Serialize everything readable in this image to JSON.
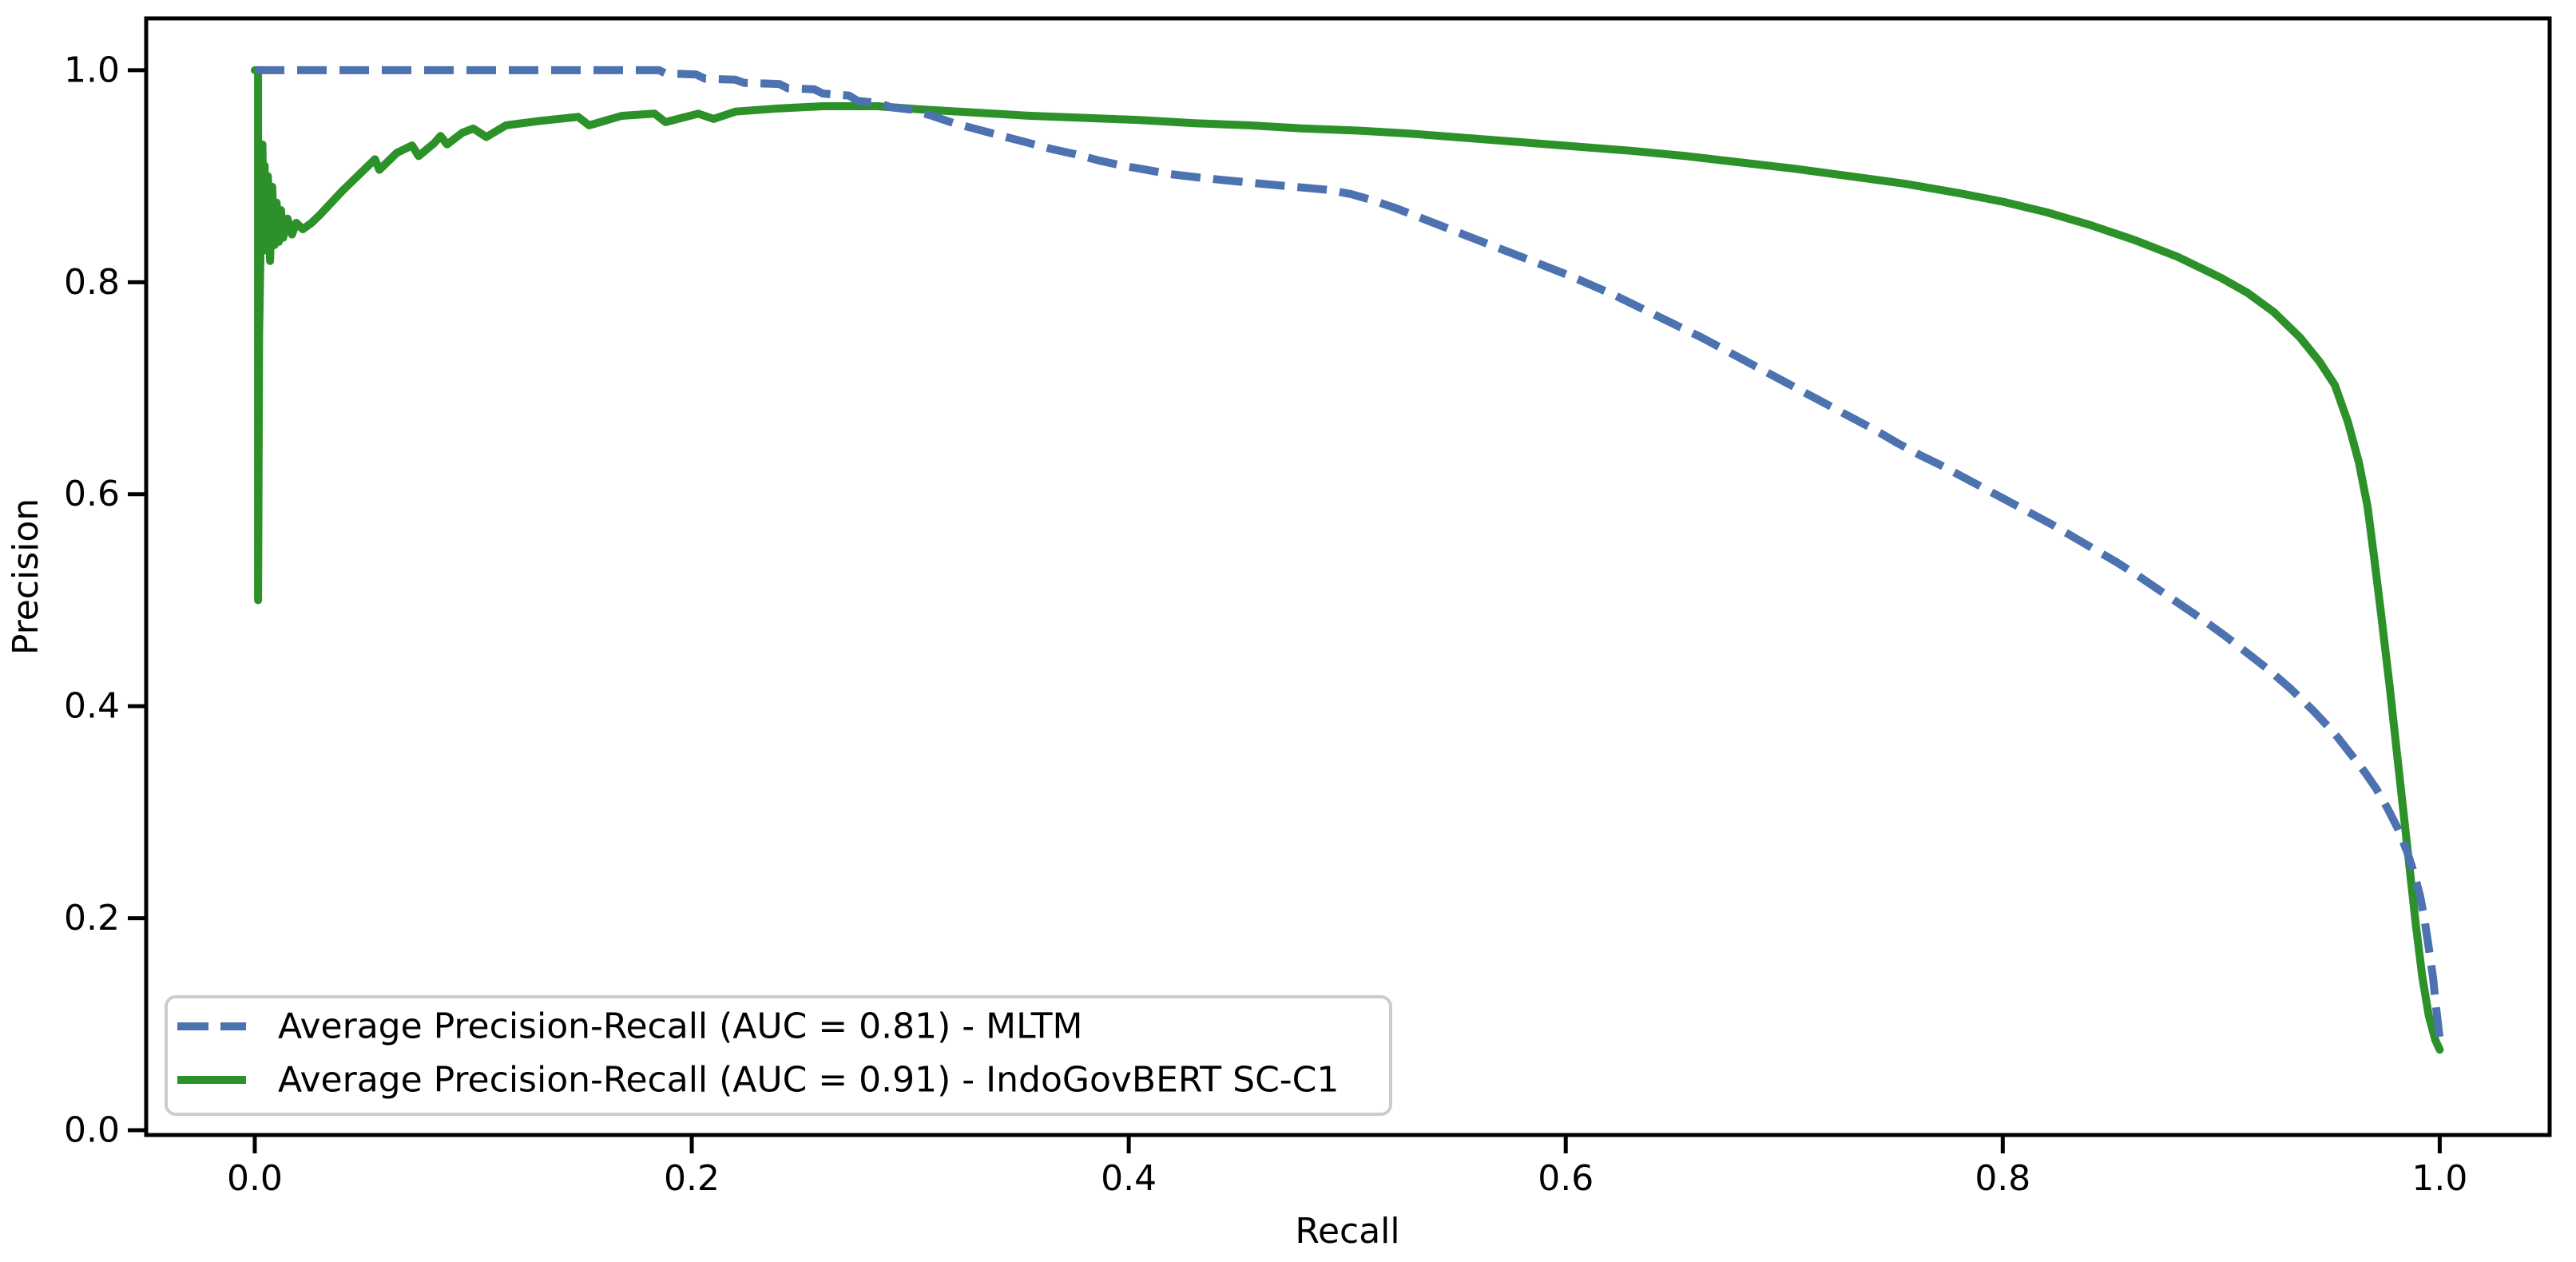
{
  "figure": {
    "background": "#ffffff",
    "axis_color": "#000000"
  },
  "chart_data": {
    "type": "line",
    "title": "",
    "xlabel": "Recall",
    "ylabel": "Precision",
    "xlim": [
      -0.0497,
      1.0503
    ],
    "ylim": [
      -0.0045,
      1.0489
    ],
    "grid": false,
    "legend": {
      "position": "lower left"
    },
    "x_ticks": [
      {
        "value": 0.0,
        "label": "0.0"
      },
      {
        "value": 0.2,
        "label": "0.2"
      },
      {
        "value": 0.4,
        "label": "0.4"
      },
      {
        "value": 0.6,
        "label": "0.6"
      },
      {
        "value": 0.8,
        "label": "0.8"
      },
      {
        "value": 1.0,
        "label": "1.0"
      }
    ],
    "y_ticks": [
      {
        "value": 0.0,
        "label": "0.0"
      },
      {
        "value": 0.2,
        "label": "0.2"
      },
      {
        "value": 0.4,
        "label": "0.4"
      },
      {
        "value": 0.6,
        "label": "0.6"
      },
      {
        "value": 0.8,
        "label": "0.8"
      },
      {
        "value": 1.0,
        "label": "1.0"
      }
    ],
    "series": [
      {
        "id": "mltm",
        "name": "Average Precision-Recall (AUC = 0.81) - MLTM",
        "auc": 0.81,
        "color": "#4c72b0",
        "style": "dashed",
        "points": [
          [
            0.0,
            1.0
          ],
          [
            0.185,
            1.0
          ],
          [
            0.188,
            0.997
          ],
          [
            0.202,
            0.996
          ],
          [
            0.206,
            0.992
          ],
          [
            0.22,
            0.991
          ],
          [
            0.224,
            0.988
          ],
          [
            0.24,
            0.987
          ],
          [
            0.244,
            0.983
          ],
          [
            0.256,
            0.982
          ],
          [
            0.26,
            0.978
          ],
          [
            0.272,
            0.976
          ],
          [
            0.276,
            0.971
          ],
          [
            0.286,
            0.969
          ],
          [
            0.291,
            0.965
          ],
          [
            0.3,
            0.963
          ],
          [
            0.31,
            0.957
          ],
          [
            0.32,
            0.95
          ],
          [
            0.331,
            0.944
          ],
          [
            0.342,
            0.938
          ],
          [
            0.353,
            0.932
          ],
          [
            0.364,
            0.926
          ],
          [
            0.375,
            0.921
          ],
          [
            0.386,
            0.915
          ],
          [
            0.397,
            0.91
          ],
          [
            0.408,
            0.906
          ],
          [
            0.419,
            0.902
          ],
          [
            0.431,
            0.899
          ],
          [
            0.445,
            0.896
          ],
          [
            0.46,
            0.893
          ],
          [
            0.476,
            0.89
          ],
          [
            0.492,
            0.887
          ],
          [
            0.502,
            0.883
          ],
          [
            0.512,
            0.877
          ],
          [
            0.522,
            0.87
          ],
          [
            0.532,
            0.862
          ],
          [
            0.542,
            0.854
          ],
          [
            0.552,
            0.846
          ],
          [
            0.562,
            0.838
          ],
          [
            0.572,
            0.83
          ],
          [
            0.582,
            0.822
          ],
          [
            0.592,
            0.814
          ],
          [
            0.602,
            0.806
          ],
          [
            0.612,
            0.797
          ],
          [
            0.622,
            0.788
          ],
          [
            0.632,
            0.778
          ],
          [
            0.642,
            0.768
          ],
          [
            0.652,
            0.758
          ],
          [
            0.662,
            0.748
          ],
          [
            0.672,
            0.737
          ],
          [
            0.682,
            0.726
          ],
          [
            0.692,
            0.715
          ],
          [
            0.702,
            0.704
          ],
          [
            0.712,
            0.693
          ],
          [
            0.722,
            0.682
          ],
          [
            0.732,
            0.671
          ],
          [
            0.742,
            0.66
          ],
          [
            0.752,
            0.648
          ],
          [
            0.762,
            0.637
          ],
          [
            0.772,
            0.627
          ],
          [
            0.782,
            0.616
          ],
          [
            0.792,
            0.605
          ],
          [
            0.802,
            0.594
          ],
          [
            0.812,
            0.583
          ],
          [
            0.822,
            0.572
          ],
          [
            0.832,
            0.56
          ],
          [
            0.842,
            0.548
          ],
          [
            0.852,
            0.536
          ],
          [
            0.862,
            0.523
          ],
          [
            0.872,
            0.509
          ],
          [
            0.882,
            0.495
          ],
          [
            0.892,
            0.481
          ],
          [
            0.902,
            0.466
          ],
          [
            0.912,
            0.45
          ],
          [
            0.922,
            0.434
          ],
          [
            0.932,
            0.416
          ],
          [
            0.942,
            0.396
          ],
          [
            0.952,
            0.374
          ],
          [
            0.96,
            0.353
          ],
          [
            0.966,
            0.337
          ],
          [
            0.971,
            0.322
          ],
          [
            0.976,
            0.304
          ],
          [
            0.981,
            0.284
          ],
          [
            0.985,
            0.263
          ],
          [
            0.988,
            0.244
          ],
          [
            0.991,
            0.221
          ],
          [
            0.993,
            0.199
          ],
          [
            0.995,
            0.172
          ],
          [
            0.997,
            0.143
          ],
          [
            0.998,
            0.122
          ],
          [
            1.0,
            0.086
          ]
        ]
      },
      {
        "id": "indogovbert",
        "name": "Average Precision-Recall (AUC = 0.91) - IndoGovBERT SC-C1",
        "auc": 0.91,
        "color": "#2b9128",
        "style": "solid",
        "points": [
          [
            0.0,
            1.0
          ],
          [
            0.0015,
            1.0
          ],
          [
            0.0015,
            0.5
          ],
          [
            0.002,
            0.75
          ],
          [
            0.003,
            0.88
          ],
          [
            0.0035,
            0.93
          ],
          [
            0.004,
            0.86
          ],
          [
            0.0045,
            0.91
          ],
          [
            0.005,
            0.83
          ],
          [
            0.006,
            0.9
          ],
          [
            0.007,
            0.82
          ],
          [
            0.008,
            0.89
          ],
          [
            0.009,
            0.835
          ],
          [
            0.01,
            0.875
          ],
          [
            0.011,
            0.838
          ],
          [
            0.012,
            0.868
          ],
          [
            0.013,
            0.842
          ],
          [
            0.015,
            0.86
          ],
          [
            0.017,
            0.845
          ],
          [
            0.019,
            0.856
          ],
          [
            0.022,
            0.85
          ],
          [
            0.026,
            0.856
          ],
          [
            0.03,
            0.864
          ],
          [
            0.035,
            0.875
          ],
          [
            0.04,
            0.886
          ],
          [
            0.045,
            0.896
          ],
          [
            0.05,
            0.906
          ],
          [
            0.055,
            0.916
          ],
          [
            0.057,
            0.906
          ],
          [
            0.065,
            0.922
          ],
          [
            0.072,
            0.929
          ],
          [
            0.075,
            0.919
          ],
          [
            0.082,
            0.931
          ],
          [
            0.085,
            0.938
          ],
          [
            0.088,
            0.93
          ],
          [
            0.095,
            0.941
          ],
          [
            0.1,
            0.945
          ],
          [
            0.106,
            0.937
          ],
          [
            0.115,
            0.948
          ],
          [
            0.13,
            0.952
          ],
          [
            0.148,
            0.956
          ],
          [
            0.153,
            0.948
          ],
          [
            0.168,
            0.957
          ],
          [
            0.183,
            0.959
          ],
          [
            0.188,
            0.951
          ],
          [
            0.203,
            0.959
          ],
          [
            0.21,
            0.954
          ],
          [
            0.22,
            0.961
          ],
          [
            0.24,
            0.964
          ],
          [
            0.26,
            0.966
          ],
          [
            0.285,
            0.966
          ],
          [
            0.305,
            0.963
          ],
          [
            0.33,
            0.96
          ],
          [
            0.355,
            0.957
          ],
          [
            0.38,
            0.955
          ],
          [
            0.405,
            0.953
          ],
          [
            0.43,
            0.95
          ],
          [
            0.455,
            0.948
          ],
          [
            0.48,
            0.945
          ],
          [
            0.505,
            0.943
          ],
          [
            0.53,
            0.94
          ],
          [
            0.555,
            0.936
          ],
          [
            0.58,
            0.932
          ],
          [
            0.605,
            0.928
          ],
          [
            0.63,
            0.924
          ],
          [
            0.655,
            0.919
          ],
          [
            0.68,
            0.913
          ],
          [
            0.705,
            0.907
          ],
          [
            0.73,
            0.9
          ],
          [
            0.755,
            0.893
          ],
          [
            0.78,
            0.884
          ],
          [
            0.8,
            0.876
          ],
          [
            0.82,
            0.866
          ],
          [
            0.84,
            0.854
          ],
          [
            0.86,
            0.84
          ],
          [
            0.88,
            0.824
          ],
          [
            0.9,
            0.804
          ],
          [
            0.912,
            0.79
          ],
          [
            0.924,
            0.772
          ],
          [
            0.936,
            0.748
          ],
          [
            0.945,
            0.725
          ],
          [
            0.952,
            0.703
          ],
          [
            0.958,
            0.668
          ],
          [
            0.963,
            0.63
          ],
          [
            0.967,
            0.588
          ],
          [
            0.97,
            0.54
          ],
          [
            0.973,
            0.49
          ],
          [
            0.977,
            0.42
          ],
          [
            0.981,
            0.345
          ],
          [
            0.985,
            0.27
          ],
          [
            0.989,
            0.195
          ],
          [
            0.992,
            0.145
          ],
          [
            0.995,
            0.108
          ],
          [
            0.998,
            0.085
          ],
          [
            1.0,
            0.076
          ]
        ]
      }
    ]
  }
}
